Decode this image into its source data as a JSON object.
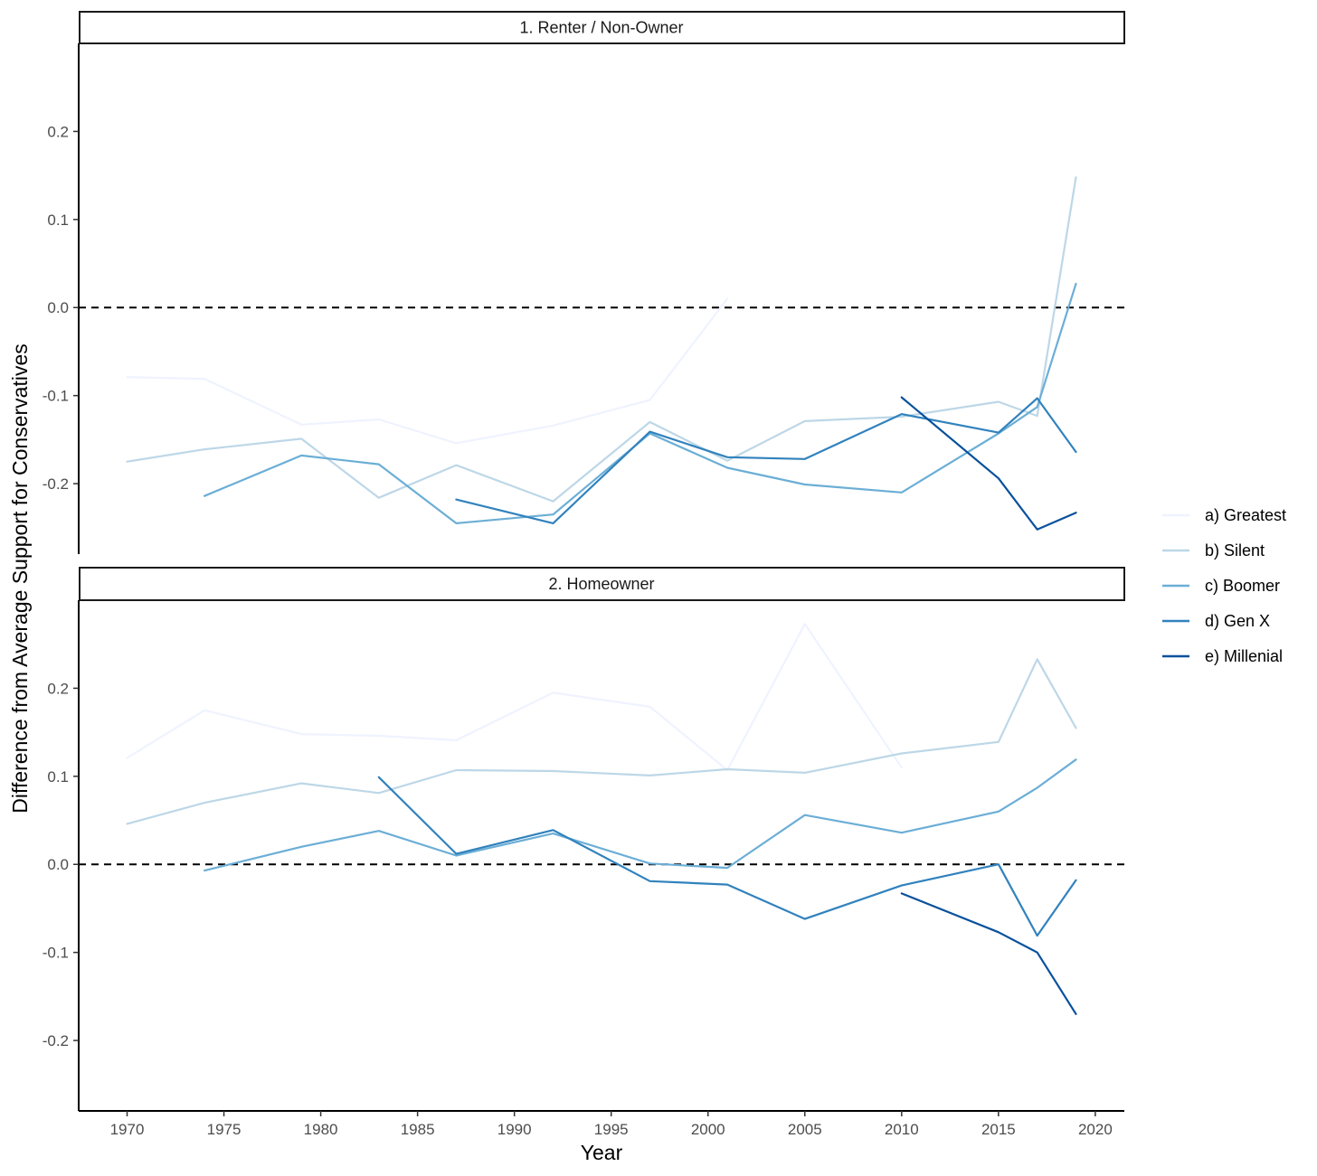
{
  "chart_data": {
    "type": "line",
    "xlabel": "Year",
    "ylabel": "Difference from Average Support for Conservatives",
    "xlim": [
      1967.5,
      2021.5
    ],
    "ylim": [
      -0.28,
      0.3
    ],
    "x_ticks": [
      1970,
      1975,
      1980,
      1985,
      1990,
      1995,
      2000,
      2005,
      2010,
      2015,
      2020
    ],
    "y_ticks": [
      -0.2,
      -0.1,
      0.0,
      0.1,
      0.2
    ],
    "y_tick_labels": [
      "-0.2",
      "-0.1",
      "0.0",
      "0.1",
      "0.2"
    ],
    "reference_line": 0,
    "grid": false,
    "legend_position": "right",
    "legend": [
      {
        "name": "a) Greatest",
        "color": "#eff3ff"
      },
      {
        "name": "b) Silent",
        "color": "#bdd7e7"
      },
      {
        "name": "c) Boomer",
        "color": "#6baed6"
      },
      {
        "name": "d) Gen X",
        "color": "#3182bd"
      },
      {
        "name": "e) Millenial",
        "color": "#08519c"
      }
    ],
    "panels": [
      {
        "title": "1. Renter / Non-Owner",
        "series": [
          {
            "name": "a) Greatest",
            "points": [
              [
                1970,
                -0.079
              ],
              [
                1974,
                -0.081
              ],
              [
                1979,
                -0.133
              ],
              [
                1983,
                -0.127
              ],
              [
                1987,
                -0.154
              ],
              [
                1992,
                -0.134
              ],
              [
                1997,
                -0.105
              ],
              [
                2001,
                0.01
              ]
            ]
          },
          {
            "name": "b) Silent",
            "points": [
              [
                1970,
                -0.175
              ],
              [
                1974,
                -0.161
              ],
              [
                1979,
                -0.149
              ],
              [
                1983,
                -0.216
              ],
              [
                1987,
                -0.179
              ],
              [
                1992,
                -0.22
              ],
              [
                1997,
                -0.13
              ],
              [
                2001,
                -0.174
              ],
              [
                2005,
                -0.129
              ],
              [
                2010,
                -0.124
              ],
              [
                2015,
                -0.107
              ],
              [
                2017,
                -0.123
              ],
              [
                2019,
                0.148
              ]
            ]
          },
          {
            "name": "c) Boomer",
            "points": [
              [
                1974,
                -0.214
              ],
              [
                1979,
                -0.168
              ],
              [
                1983,
                -0.178
              ],
              [
                1987,
                -0.245
              ],
              [
                1992,
                -0.235
              ],
              [
                1997,
                -0.143
              ],
              [
                2001,
                -0.182
              ],
              [
                2005,
                -0.201
              ],
              [
                2010,
                -0.21
              ],
              [
                2015,
                -0.143
              ],
              [
                2017,
                -0.113
              ],
              [
                2019,
                0.027
              ]
            ]
          },
          {
            "name": "d) Gen X",
            "points": [
              [
                1987,
                -0.218
              ],
              [
                1992,
                -0.245
              ],
              [
                1997,
                -0.141
              ],
              [
                2001,
                -0.17
              ],
              [
                2005,
                -0.172
              ],
              [
                2010,
                -0.121
              ],
              [
                2015,
                -0.142
              ],
              [
                2017,
                -0.103
              ],
              [
                2019,
                -0.164
              ]
            ]
          },
          {
            "name": "e) Millenial",
            "points": [
              [
                2010,
                -0.102
              ],
              [
                2015,
                -0.194
              ],
              [
                2017,
                -0.252
              ],
              [
                2019,
                -0.233
              ]
            ]
          }
        ]
      },
      {
        "title": "2. Homeowner",
        "series": [
          {
            "name": "a) Greatest",
            "points": [
              [
                1970,
                0.121
              ],
              [
                1974,
                0.175
              ],
              [
                1979,
                0.148
              ],
              [
                1983,
                0.146
              ],
              [
                1987,
                0.141
              ],
              [
                1992,
                0.195
              ],
              [
                1997,
                0.179
              ],
              [
                2001,
                0.107
              ],
              [
                2005,
                0.273
              ],
              [
                2010,
                0.11
              ]
            ]
          },
          {
            "name": "b) Silent",
            "points": [
              [
                1970,
                0.046
              ],
              [
                1974,
                0.07
              ],
              [
                1979,
                0.092
              ],
              [
                1983,
                0.081
              ],
              [
                1987,
                0.107
              ],
              [
                1992,
                0.106
              ],
              [
                1997,
                0.101
              ],
              [
                2001,
                0.108
              ],
              [
                2005,
                0.104
              ],
              [
                2010,
                0.126
              ],
              [
                2015,
                0.139
              ],
              [
                2017,
                0.233
              ],
              [
                2019,
                0.155
              ]
            ]
          },
          {
            "name": "c) Boomer",
            "points": [
              [
                1974,
                -0.007
              ],
              [
                1979,
                0.02
              ],
              [
                1983,
                0.038
              ],
              [
                1987,
                0.01
              ],
              [
                1992,
                0.035
              ],
              [
                1997,
                0.001
              ],
              [
                2001,
                -0.004
              ],
              [
                2005,
                0.056
              ],
              [
                2010,
                0.036
              ],
              [
                2015,
                0.06
              ],
              [
                2017,
                0.087
              ],
              [
                2019,
                0.119
              ]
            ]
          },
          {
            "name": "d) Gen X",
            "points": [
              [
                1983,
                0.099
              ],
              [
                1987,
                0.012
              ],
              [
                1992,
                0.039
              ],
              [
                1997,
                -0.019
              ],
              [
                2001,
                -0.023
              ],
              [
                2005,
                -0.062
              ],
              [
                2010,
                -0.024
              ],
              [
                2015,
                0.0
              ],
              [
                2017,
                -0.081
              ],
              [
                2019,
                -0.018
              ]
            ]
          },
          {
            "name": "e) Millenial",
            "points": [
              [
                2010,
                -0.033
              ],
              [
                2015,
                -0.077
              ],
              [
                2017,
                -0.1
              ],
              [
                2019,
                -0.17
              ]
            ]
          }
        ]
      }
    ]
  }
}
